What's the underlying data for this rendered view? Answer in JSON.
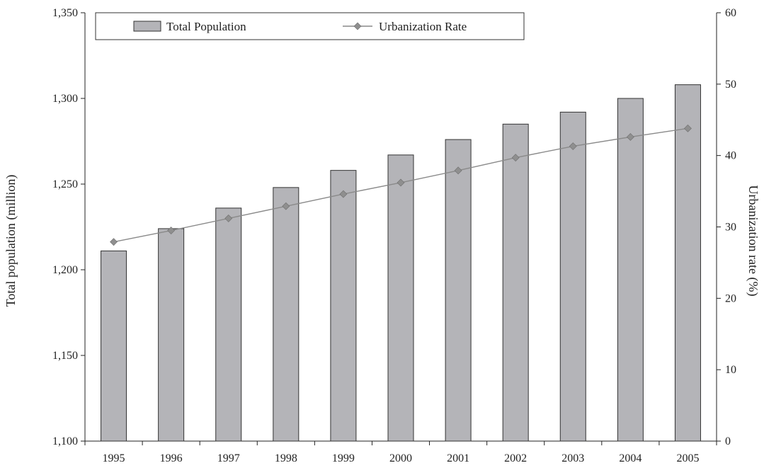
{
  "chart_data": {
    "type": "bar",
    "categories": [
      "1995",
      "1996",
      "1997",
      "1998",
      "1999",
      "2000",
      "2001",
      "2002",
      "2003",
      "2004",
      "2005"
    ],
    "series": [
      {
        "name": "Total Population",
        "type": "bar",
        "axis": "left",
        "values": [
          1211,
          1224,
          1236,
          1248,
          1258,
          1267,
          1276,
          1285,
          1292,
          1300,
          1308
        ]
      },
      {
        "name": "Urbanization Rate",
        "type": "line",
        "axis": "right",
        "values": [
          27.9,
          29.5,
          31.2,
          32.9,
          34.6,
          36.2,
          37.9,
          39.7,
          41.3,
          42.6,
          43.8
        ]
      }
    ],
    "ylabel": "Total population (million)",
    "y2label": "Urbanization rate (%)",
    "ylim": [
      1100,
      1350
    ],
    "y2lim": [
      0,
      60
    ],
    "yticks": [
      "1,100",
      "1,150",
      "1,200",
      "1,250",
      "1,300",
      "1,350"
    ],
    "y2ticks": [
      "0",
      "10",
      "20",
      "30",
      "40",
      "50",
      "60"
    ],
    "legend_position": "top-center",
    "grid": false,
    "colors": {
      "bar": "#b4b4b8",
      "line": "#8a8a8a",
      "marker": "#8f8f8f",
      "axis": "#222222"
    }
  }
}
